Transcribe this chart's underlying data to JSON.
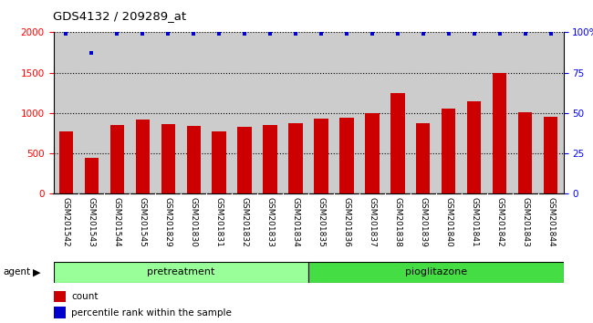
{
  "title": "GDS4132 / 209289_at",
  "categories": [
    "GSM201542",
    "GSM201543",
    "GSM201544",
    "GSM201545",
    "GSM201829",
    "GSM201830",
    "GSM201831",
    "GSM201832",
    "GSM201833",
    "GSM201834",
    "GSM201835",
    "GSM201836",
    "GSM201837",
    "GSM201838",
    "GSM201839",
    "GSM201840",
    "GSM201841",
    "GSM201842",
    "GSM201843",
    "GSM201844"
  ],
  "counts": [
    775,
    450,
    850,
    920,
    860,
    840,
    775,
    835,
    850,
    875,
    930,
    940,
    1000,
    1250,
    870,
    1060,
    1150,
    1500,
    1010,
    950
  ],
  "percentile_ranks_pct": [
    99,
    87,
    99,
    99,
    99,
    99,
    99,
    99,
    99,
    99,
    99,
    99,
    99,
    99,
    99,
    99,
    99,
    99,
    99,
    99
  ],
  "pretreatment_count": 10,
  "pioglitazone_count": 10,
  "bar_color": "#cc0000",
  "dot_color": "#0000cc",
  "pretreatment_color": "#99ff99",
  "pioglitazone_color": "#44dd44",
  "ylim_left": [
    0,
    2000
  ],
  "ylim_right": [
    0,
    100
  ],
  "yticks_left": [
    0,
    500,
    1000,
    1500,
    2000
  ],
  "yticks_right": [
    0,
    25,
    50,
    75,
    100
  ],
  "ytick_labels_right": [
    "0",
    "25",
    "50",
    "75",
    "100%"
  ],
  "bar_width": 0.55,
  "bg_color": "#cccccc"
}
